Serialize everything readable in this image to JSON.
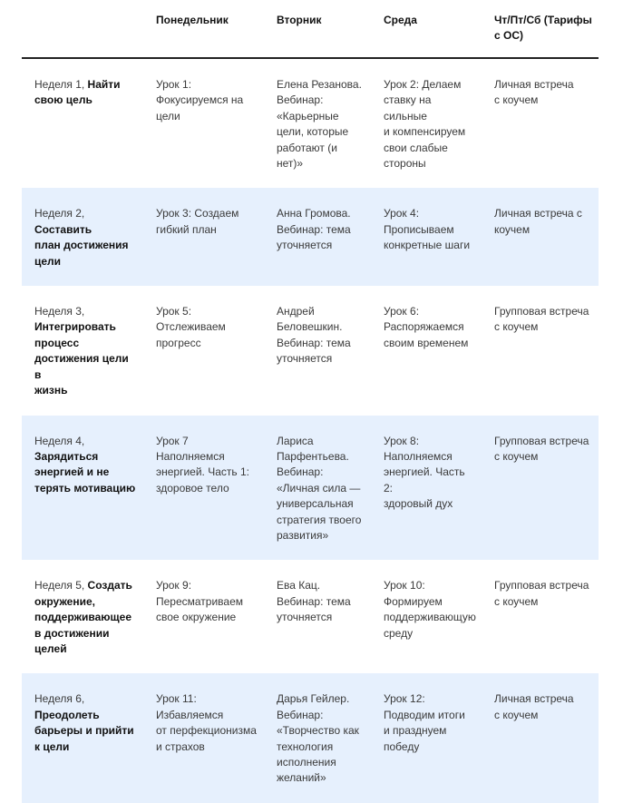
{
  "header": [
    "",
    "Понедельник",
    "Вторник",
    "Среда",
    "Чт/Пт/Сб (Тарифы\nс ОС)"
  ],
  "rows": [
    {
      "week": "Неделя 1, ",
      "goal": "Найти\nсвою цель",
      "mon": "Урок 1:\nФокусируемся на\nцели",
      "tue": "Елена Резанова.\nВебинар:\n«Карьерные\nцели, которые\nработают (и\nнет)»",
      "wed": "Урок 2: Делаем\nставку на сильные\nи компенсируем\nсвои слабые\nстороны",
      "thu": "Личная встреча\nс коучем"
    },
    {
      "week": "Неделя 2, ",
      "goal": "Составить\nплан достижения\nцели",
      "mon": "Урок 3: Создаем\nгибкий план",
      "tue": "Анна Громова.\nВебинар: тема\nуточняется",
      "wed": "Урок 4:\nПрописываем\nконкретные шаги",
      "thu": "Личная встреча с\nкоучем"
    },
    {
      "week": "Неделя 3,\n",
      "goal": "Интегрировать\nпроцесс\nдостижения цели в\nжизнь",
      "mon": "Урок 5:\nОтслеживаем\nпрогресс",
      "tue": "Андрей\nБеловешкин.\nВебинар: тема\nуточняется",
      "wed": "Урок 6:\nРаспоряжаемся\nсвоим временем",
      "thu": "Групповая встреча\nс коучем"
    },
    {
      "week": "Неделя 4,\n",
      "goal": "Зарядиться\nэнергией и не\nтерять мотивацию",
      "mon": "Урок 7\nНаполняемся\nэнергией. Часть 1:\nздоровое тело",
      "tue": "Лариса\nПарфентьева.\nВебинар:\n«Личная сила —\nуниверсальная\nстратегия твоего\nразвития»",
      "wed": "Урок 8:\nНаполняемся\nэнергией. Часть 2:\nздоровый дух",
      "thu": "Групповая встреча\nс коучем"
    },
    {
      "week": "Неделя 5, ",
      "goal": "Создать\nокружение,\nподдерживающее\nв достижении\nцелей",
      "mon": "Урок 9:\nПересматриваем\nсвое окружение",
      "tue": "Ева Кац.\nВебинар: тема\nуточняется",
      "wed": "Урок 10:\nФормируем\nподдерживающую\nсреду",
      "thu": "Групповая встреча\nс коучем"
    },
    {
      "week": "Неделя 6,\n",
      "goal": "Преодолеть\nбарьеры и прийти\nк цели",
      "mon": "Урок 11:\nИзбавляемся\nот перфекционизма\nи страхов",
      "tue": "Дарья Гейлер.\nВебинар:\n«Творчество как\nтехнология\nисполнения\nжеланий»",
      "wed": "Урок 12:\nПодводим итоги\nи празднуем\nпобеду",
      "thu": "Личная встреча\nс коучем"
    }
  ],
  "colors": {
    "alt_row_bg": "#e6f0fd",
    "header_rule": "#222222"
  }
}
